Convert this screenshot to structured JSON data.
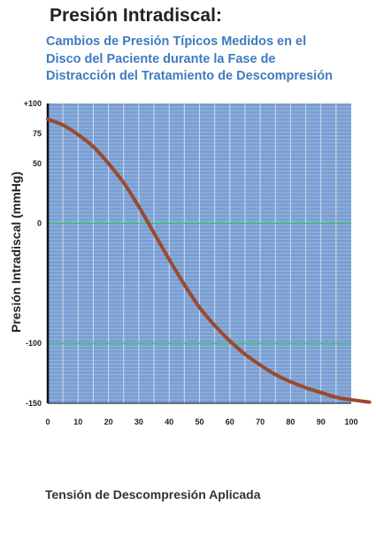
{
  "chart_data": {
    "type": "line",
    "title": "Presión Intradiscal:",
    "subtitle": [
      "Cambios de Presión Típicos Medidos en el",
      "Disco del Paciente durante la Fase de",
      "Distracción del Tratamiento de Descompresión"
    ],
    "xlabel": "Tensión de Descompresión Aplicada",
    "ylabel": "Presión Intradiscal (mmHg)",
    "xlim": [
      0,
      100
    ],
    "ylim": [
      -150,
      100
    ],
    "x_ticks": [
      0,
      10,
      20,
      30,
      40,
      50,
      60,
      70,
      80,
      90,
      100
    ],
    "x_tick_labels": [
      "0",
      "10",
      "20",
      "30",
      "40",
      "50",
      "60",
      "70",
      "80",
      "90",
      "100"
    ],
    "y_ticks": [
      100,
      75,
      50,
      0,
      -100,
      -150
    ],
    "y_tick_labels": [
      "+100",
      "75",
      "50",
      "0",
      "-100",
      "-150"
    ],
    "reference_lines": [
      0,
      -100
    ],
    "grid": true,
    "series": [
      {
        "x": [
          0,
          5,
          10,
          15,
          20,
          25,
          30,
          35,
          40,
          45,
          50,
          55,
          60,
          65,
          70,
          75,
          80,
          85,
          90,
          95,
          100,
          106
        ],
        "y": [
          87,
          82,
          74,
          64,
          50,
          34,
          14,
          -8,
          -30,
          -51,
          -70,
          -85,
          -98,
          -109,
          -118,
          -126,
          -132,
          -137,
          -141,
          -145,
          -147,
          -149
        ]
      }
    ],
    "colors": {
      "plot_background": "#7a9fd2",
      "curve": "#9a4a2f",
      "reference_line": "#35c46a",
      "axis": "#111111"
    }
  }
}
